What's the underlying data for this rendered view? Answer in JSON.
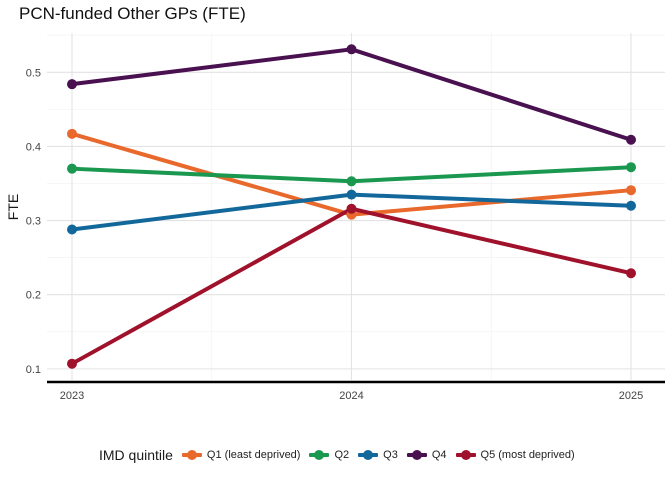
{
  "chart_data": {
    "type": "line",
    "title": "PCN-funded Other GPs (FTE)",
    "xlabel": "",
    "ylabel": "FTE",
    "x": [
      "2023",
      "2024",
      "2025"
    ],
    "ylim": [
      0.085,
      0.553
    ],
    "yticks": [
      "0.1",
      "0.2",
      "0.3",
      "0.4",
      "0.5"
    ],
    "grid": true,
    "legend_position": "bottom",
    "legend_title": "IMD quintile",
    "series": [
      {
        "name": "Q1 (least deprived)",
        "color": "#E8692B",
        "values": [
          0.417,
          0.308,
          0.341
        ]
      },
      {
        "name": "Q2",
        "color": "#1A9850",
        "values": [
          0.37,
          0.353,
          0.372
        ]
      },
      {
        "name": "Q3",
        "color": "#12689A",
        "values": [
          0.288,
          0.335,
          0.32
        ]
      },
      {
        "name": "Q4",
        "color": "#4A1150",
        "values": [
          0.484,
          0.531,
          0.409
        ]
      },
      {
        "name": "Q5 (most deprived)",
        "color": "#A0122B",
        "values": [
          0.107,
          0.316,
          0.229
        ]
      }
    ]
  }
}
